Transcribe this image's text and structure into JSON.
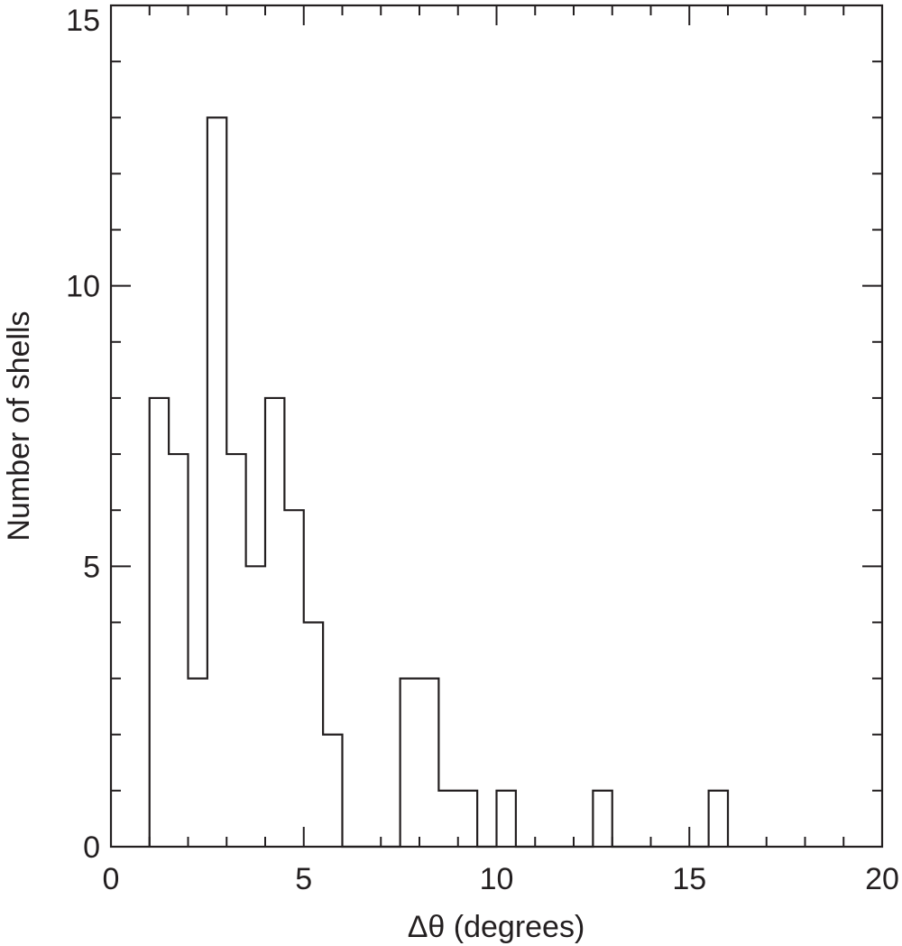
{
  "chart_data": {
    "type": "bar",
    "subtype": "histogram-step",
    "title": "",
    "xlabel": "Δθ  (degrees)",
    "ylabel": "Number of shells",
    "xlim": [
      0,
      20
    ],
    "ylim": [
      0,
      15
    ],
    "x_ticks": [
      0,
      5,
      10,
      15,
      20
    ],
    "y_ticks": [
      0,
      5,
      10,
      15
    ],
    "x_minor_step": 1,
    "y_minor_step": 1,
    "bin_width": 0.5,
    "bin_edges": [
      1.0,
      1.5,
      2.0,
      2.5,
      3.0,
      3.5,
      4.0,
      4.5,
      5.0,
      5.5,
      6.0,
      6.5,
      7.0,
      7.5,
      8.0,
      8.5,
      9.0,
      9.5,
      10.0,
      10.5,
      11.0,
      11.5,
      12.0,
      12.5,
      13.0,
      13.5,
      14.0,
      14.5,
      15.0,
      15.5,
      16.0
    ],
    "counts": [
      8,
      7,
      3,
      13,
      7,
      5,
      8,
      6,
      4,
      2,
      0,
      0,
      0,
      3,
      3,
      1,
      1,
      0,
      1,
      0,
      0,
      0,
      0,
      1,
      0,
      0,
      0,
      0,
      0,
      1
    ],
    "grid": false,
    "legend": "none",
    "colors": {
      "line": "#231f20",
      "background": "#ffffff"
    }
  }
}
